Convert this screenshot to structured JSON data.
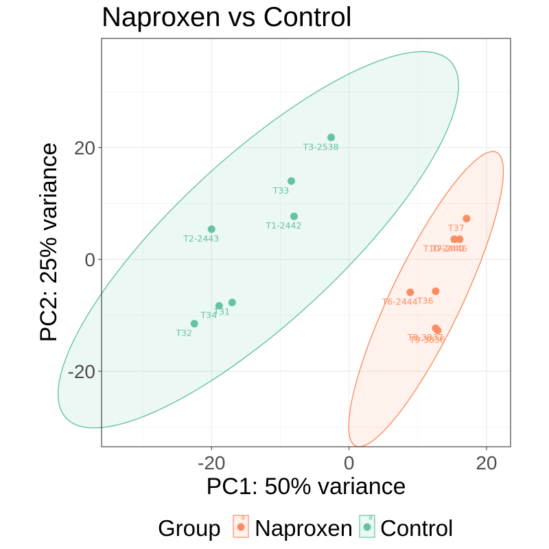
{
  "chart_data": {
    "type": "scatter",
    "title": "Naproxen vs Control",
    "xlabel": "PC1: 50% variance",
    "ylabel": "PC2: 25% variance",
    "xlim": [
      -36,
      23.5
    ],
    "ylim": [
      -33.5,
      39.5
    ],
    "x_ticks": [
      -20,
      0,
      20
    ],
    "y_ticks": [
      -20,
      0,
      20
    ],
    "x_tick_labels": [
      "-20",
      "0",
      "20"
    ],
    "y_tick_labels": [
      "-20",
      "0",
      "20"
    ],
    "grid": true,
    "legend": {
      "title": "Group",
      "position": "bottom",
      "key_glyph_text": "a",
      "entries": [
        "Naproxen",
        "Control"
      ]
    },
    "series": [
      {
        "name": "Naproxen",
        "color": "#FC8D62",
        "points": [
          {
            "label": "T37",
            "x": 17.1,
            "y": 7.3
          },
          {
            "label": "T10-2440",
            "x": 15.3,
            "y": 3.6
          },
          {
            "label": "T7-2446",
            "x": 16.1,
            "y": 3.6
          },
          {
            "label": "T6-2444",
            "x": 8.9,
            "y": -5.9
          },
          {
            "label": "T36",
            "x": 12.6,
            "y": -5.7
          },
          {
            "label": "T8-3837",
            "x": 12.6,
            "y": -12.3
          },
          {
            "label": "T9-3836",
            "x": 12.9,
            "y": -12.7
          }
        ],
        "ellipse": {
          "cx": 11.2,
          "cy": -7.1,
          "semi_major": 28.2,
          "semi_minor": 5.3,
          "angle_deg": 69
        }
      },
      {
        "name": "Control",
        "color": "#66C2A5",
        "points": [
          {
            "label": "T3-2538",
            "x": -2.6,
            "y": 21.8
          },
          {
            "label": "T33",
            "x": -8.4,
            "y": 14.0
          },
          {
            "label": "T1-2442",
            "x": -8.0,
            "y": 7.7
          },
          {
            "label": "T2-2443",
            "x": -20.0,
            "y": 5.4
          },
          {
            "label": "T31",
            "x": -17.0,
            "y": -7.7
          },
          {
            "label": "T34",
            "x": -18.9,
            "y": -8.3
          },
          {
            "label": "T32",
            "x": -22.5,
            "y": -11.5
          }
        ],
        "ellipse": {
          "cx": -13.2,
          "cy": 3.5,
          "semi_major": 42.5,
          "semi_minor": 13.2,
          "angle_deg": 50
        }
      }
    ]
  }
}
